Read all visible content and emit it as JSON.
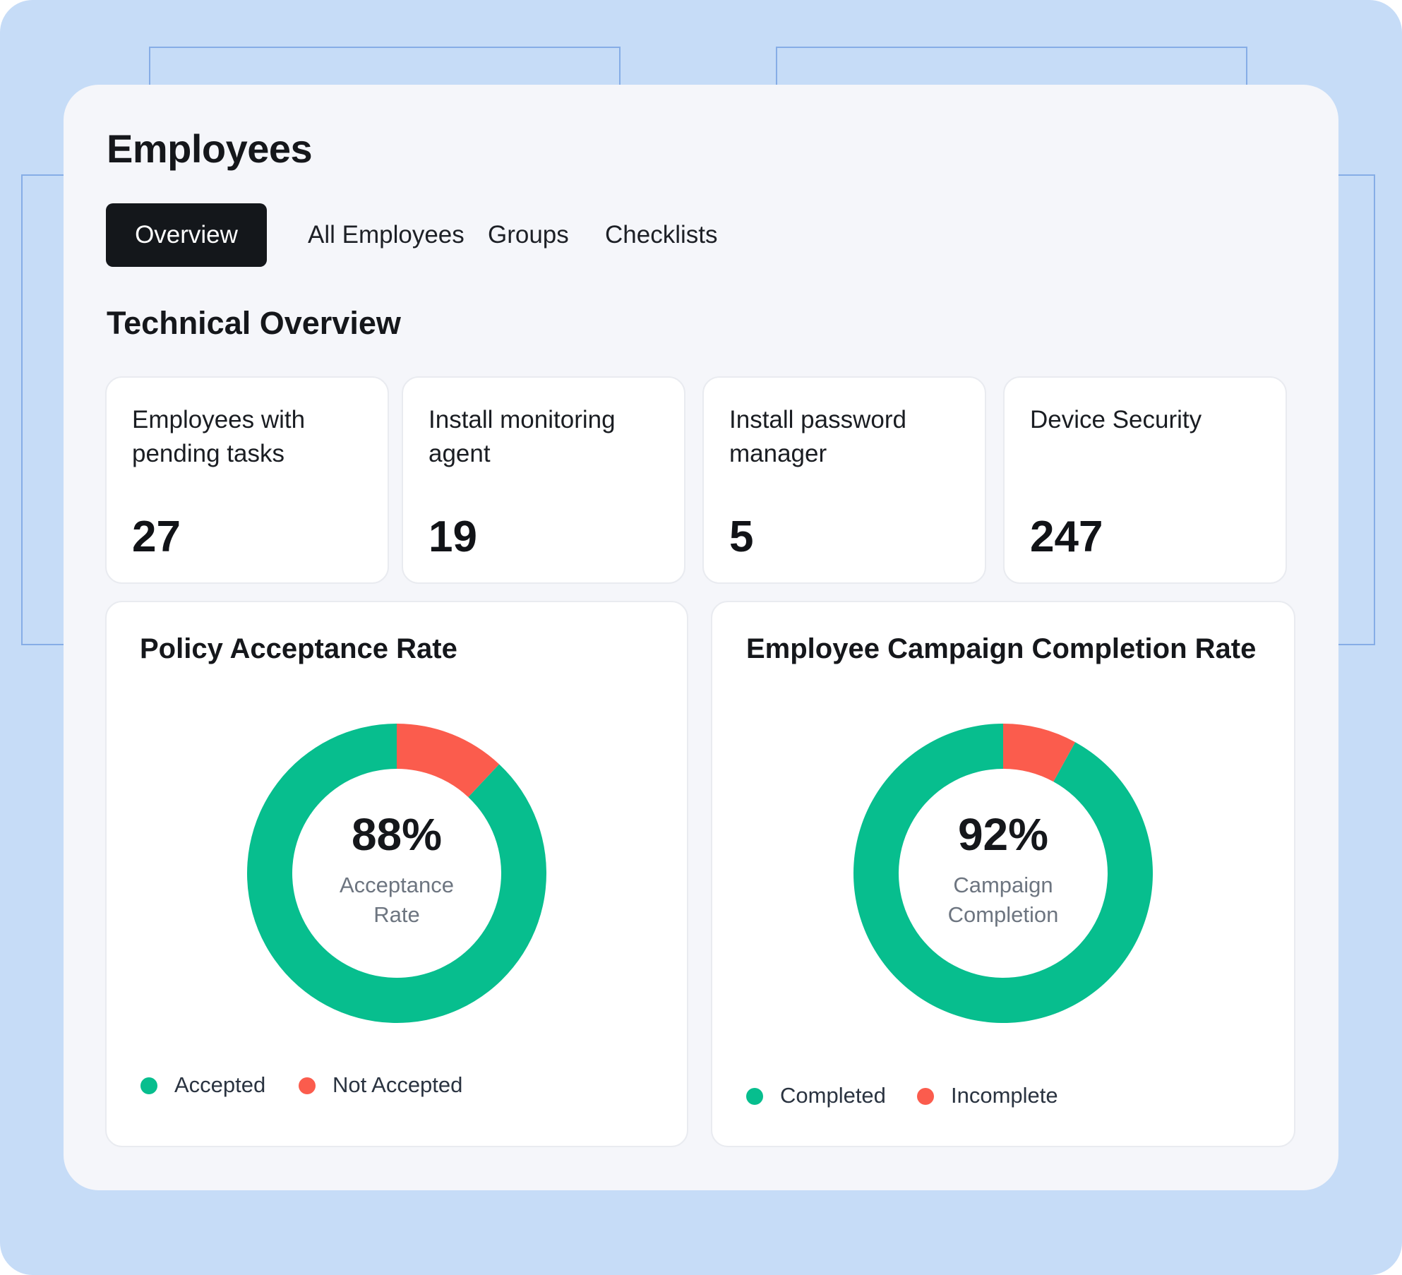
{
  "header": {
    "title": "Employees"
  },
  "tabs": [
    {
      "label": "Overview",
      "active": true
    },
    {
      "label": "All Employees",
      "active": false
    },
    {
      "label": "Groups",
      "active": false
    },
    {
      "label": "Checklists",
      "active": false
    }
  ],
  "section": {
    "title": "Technical Overview"
  },
  "stats": [
    {
      "label": "Employees with pending tasks",
      "value": "27"
    },
    {
      "label": "Install monitoring agent",
      "value": "19"
    },
    {
      "label": "Install password manager",
      "value": "5"
    },
    {
      "label": "Device Security",
      "value": "247"
    }
  ],
  "colors": {
    "positive": "#07be8e",
    "negative": "#fb5c4d"
  },
  "chart_data": [
    {
      "type": "pie",
      "title": "Policy Acceptance Rate",
      "center_value": "88%",
      "center_caption": [
        "Acceptance",
        "Rate"
      ],
      "categories": [
        "Accepted",
        "Not Accepted"
      ],
      "values": [
        88,
        12
      ],
      "colors": [
        "#07be8e",
        "#fb5c4d"
      ],
      "legend_position": "bottom-left"
    },
    {
      "type": "pie",
      "title": "Employee Campaign Completion Rate",
      "center_value": "92%",
      "center_caption": [
        "Campaign",
        "Completion"
      ],
      "categories": [
        "Completed",
        "Incomplete"
      ],
      "values": [
        92,
        8
      ],
      "colors": [
        "#07be8e",
        "#fb5c4d"
      ],
      "legend_position": "bottom-left"
    }
  ]
}
